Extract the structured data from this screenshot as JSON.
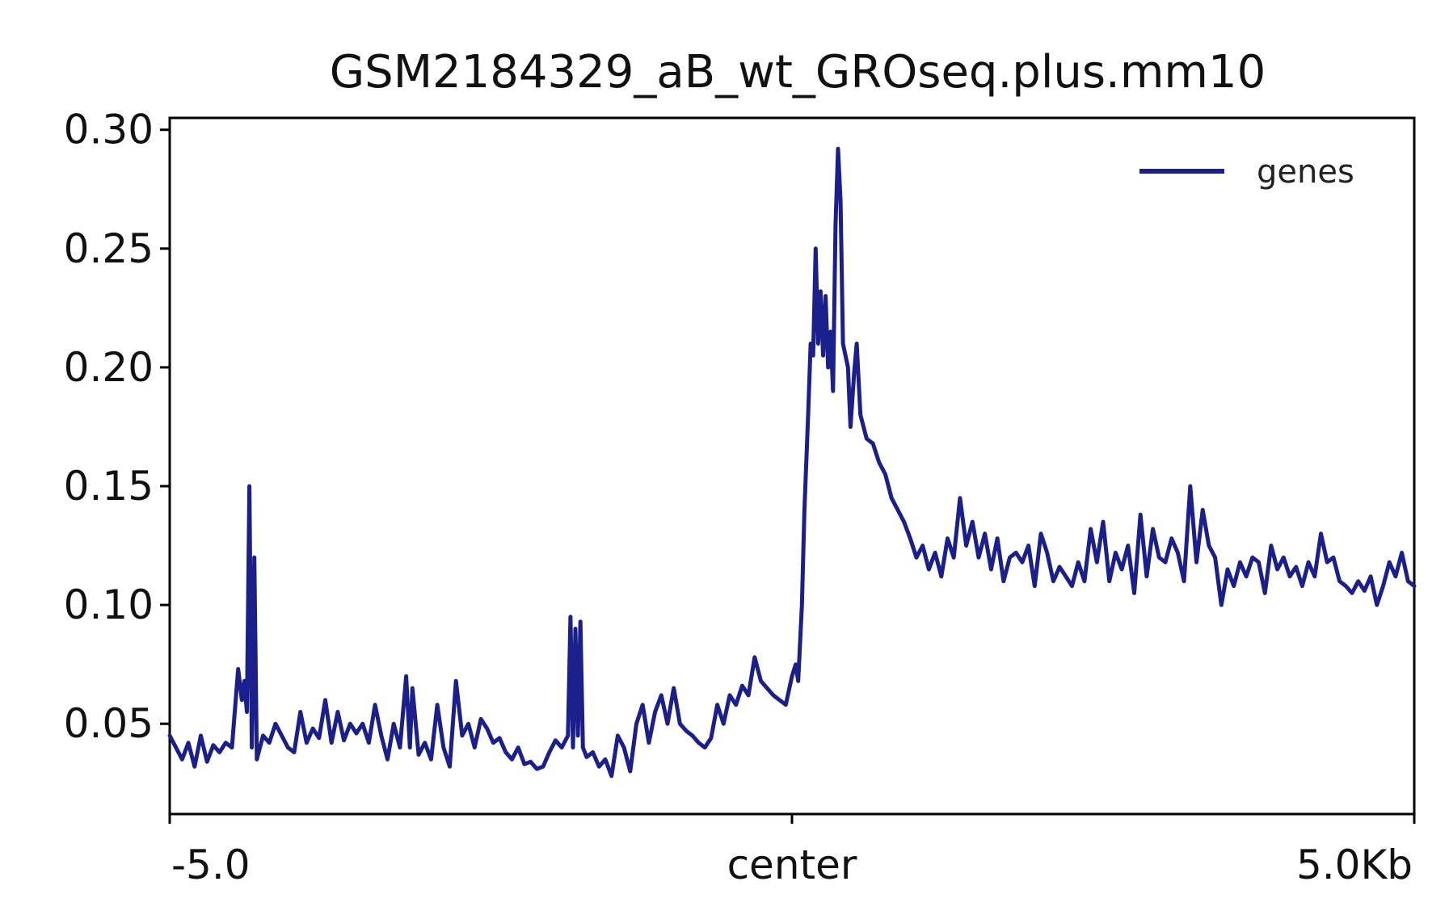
{
  "chart_data": {
    "type": "line",
    "title": "GSM2184329_aB_wt_GROseq.plus.mm10",
    "xlabel": "",
    "ylabel": "",
    "x_range": [
      -5.0,
      5.0
    ],
    "xlim": [
      -5.0,
      5.0
    ],
    "ylim": [
      0.012,
      0.305
    ],
    "grid": false,
    "legend_position": "top-right",
    "x_ticks": [
      {
        "value": -5.0,
        "label": "-5.0"
      },
      {
        "value": 0.0,
        "label": "center"
      },
      {
        "value": 5.0,
        "label": "5.0Kb"
      }
    ],
    "y_ticks": [
      {
        "value": 0.05,
        "label": "0.05"
      },
      {
        "value": 0.1,
        "label": "0.10"
      },
      {
        "value": 0.15,
        "label": "0.15"
      },
      {
        "value": 0.2,
        "label": "0.20"
      },
      {
        "value": 0.25,
        "label": "0.25"
      },
      {
        "value": 0.3,
        "label": "0.30"
      }
    ],
    "series": [
      {
        "name": "genes",
        "color": "#1a1f8c",
        "points": [
          [
            -5.0,
            0.045
          ],
          [
            -4.9,
            0.035
          ],
          [
            -4.85,
            0.042
          ],
          [
            -4.8,
            0.032
          ],
          [
            -4.75,
            0.045
          ],
          [
            -4.7,
            0.034
          ],
          [
            -4.65,
            0.041
          ],
          [
            -4.6,
            0.038
          ],
          [
            -4.55,
            0.042
          ],
          [
            -4.5,
            0.04
          ],
          [
            -4.45,
            0.073
          ],
          [
            -4.42,
            0.06
          ],
          [
            -4.4,
            0.068
          ],
          [
            -4.38,
            0.055
          ],
          [
            -4.36,
            0.15
          ],
          [
            -4.34,
            0.04
          ],
          [
            -4.32,
            0.12
          ],
          [
            -4.3,
            0.035
          ],
          [
            -4.25,
            0.045
          ],
          [
            -4.2,
            0.042
          ],
          [
            -4.15,
            0.05
          ],
          [
            -4.1,
            0.045
          ],
          [
            -4.05,
            0.04
          ],
          [
            -4.0,
            0.038
          ],
          [
            -3.95,
            0.055
          ],
          [
            -3.9,
            0.042
          ],
          [
            -3.85,
            0.048
          ],
          [
            -3.8,
            0.044
          ],
          [
            -3.75,
            0.06
          ],
          [
            -3.7,
            0.042
          ],
          [
            -3.65,
            0.055
          ],
          [
            -3.6,
            0.043
          ],
          [
            -3.55,
            0.05
          ],
          [
            -3.5,
            0.046
          ],
          [
            -3.45,
            0.05
          ],
          [
            -3.4,
            0.042
          ],
          [
            -3.35,
            0.058
          ],
          [
            -3.3,
            0.045
          ],
          [
            -3.25,
            0.035
          ],
          [
            -3.2,
            0.05
          ],
          [
            -3.15,
            0.04
          ],
          [
            -3.1,
            0.07
          ],
          [
            -3.07,
            0.04
          ],
          [
            -3.05,
            0.065
          ],
          [
            -3.0,
            0.037
          ],
          [
            -2.95,
            0.042
          ],
          [
            -2.9,
            0.035
          ],
          [
            -2.85,
            0.058
          ],
          [
            -2.8,
            0.04
          ],
          [
            -2.75,
            0.032
          ],
          [
            -2.7,
            0.068
          ],
          [
            -2.65,
            0.045
          ],
          [
            -2.6,
            0.05
          ],
          [
            -2.55,
            0.04
          ],
          [
            -2.5,
            0.052
          ],
          [
            -2.45,
            0.048
          ],
          [
            -2.4,
            0.042
          ],
          [
            -2.35,
            0.044
          ],
          [
            -2.3,
            0.038
          ],
          [
            -2.25,
            0.035
          ],
          [
            -2.2,
            0.04
          ],
          [
            -2.15,
            0.033
          ],
          [
            -2.1,
            0.034
          ],
          [
            -2.05,
            0.031
          ],
          [
            -2.0,
            0.032
          ],
          [
            -1.95,
            0.038
          ],
          [
            -1.9,
            0.043
          ],
          [
            -1.85,
            0.04
          ],
          [
            -1.8,
            0.045
          ],
          [
            -1.78,
            0.095
          ],
          [
            -1.76,
            0.04
          ],
          [
            -1.74,
            0.09
          ],
          [
            -1.72,
            0.045
          ],
          [
            -1.7,
            0.093
          ],
          [
            -1.68,
            0.04
          ],
          [
            -1.65,
            0.036
          ],
          [
            -1.6,
            0.038
          ],
          [
            -1.55,
            0.032
          ],
          [
            -1.5,
            0.035
          ],
          [
            -1.45,
            0.028
          ],
          [
            -1.4,
            0.045
          ],
          [
            -1.35,
            0.04
          ],
          [
            -1.3,
            0.03
          ],
          [
            -1.25,
            0.05
          ],
          [
            -1.2,
            0.058
          ],
          [
            -1.15,
            0.042
          ],
          [
            -1.1,
            0.055
          ],
          [
            -1.05,
            0.062
          ],
          [
            -1.0,
            0.05
          ],
          [
            -0.95,
            0.065
          ],
          [
            -0.9,
            0.05
          ],
          [
            -0.85,
            0.047
          ],
          [
            -0.8,
            0.045
          ],
          [
            -0.75,
            0.042
          ],
          [
            -0.7,
            0.04
          ],
          [
            -0.65,
            0.044
          ],
          [
            -0.6,
            0.058
          ],
          [
            -0.55,
            0.05
          ],
          [
            -0.5,
            0.062
          ],
          [
            -0.45,
            0.058
          ],
          [
            -0.4,
            0.066
          ],
          [
            -0.35,
            0.062
          ],
          [
            -0.3,
            0.078
          ],
          [
            -0.25,
            0.068
          ],
          [
            -0.2,
            0.065
          ],
          [
            -0.15,
            0.062
          ],
          [
            -0.1,
            0.06
          ],
          [
            -0.05,
            0.058
          ],
          [
            0.0,
            0.07
          ],
          [
            0.03,
            0.075
          ],
          [
            0.05,
            0.068
          ],
          [
            0.08,
            0.1
          ],
          [
            0.1,
            0.14
          ],
          [
            0.13,
            0.18
          ],
          [
            0.15,
            0.21
          ],
          [
            0.17,
            0.205
          ],
          [
            0.19,
            0.25
          ],
          [
            0.21,
            0.21
          ],
          [
            0.23,
            0.232
          ],
          [
            0.25,
            0.205
          ],
          [
            0.27,
            0.23
          ],
          [
            0.29,
            0.2
          ],
          [
            0.31,
            0.215
          ],
          [
            0.33,
            0.19
          ],
          [
            0.35,
            0.26
          ],
          [
            0.37,
            0.292
          ],
          [
            0.39,
            0.27
          ],
          [
            0.41,
            0.21
          ],
          [
            0.43,
            0.205
          ],
          [
            0.45,
            0.2
          ],
          [
            0.47,
            0.175
          ],
          [
            0.5,
            0.198
          ],
          [
            0.52,
            0.21
          ],
          [
            0.55,
            0.18
          ],
          [
            0.6,
            0.17
          ],
          [
            0.65,
            0.168
          ],
          [
            0.7,
            0.16
          ],
          [
            0.75,
            0.155
          ],
          [
            0.8,
            0.145
          ],
          [
            0.85,
            0.14
          ],
          [
            0.9,
            0.135
          ],
          [
            0.95,
            0.128
          ],
          [
            1.0,
            0.12
          ],
          [
            1.05,
            0.125
          ],
          [
            1.1,
            0.115
          ],
          [
            1.15,
            0.122
          ],
          [
            1.2,
            0.112
          ],
          [
            1.25,
            0.128
          ],
          [
            1.3,
            0.12
          ],
          [
            1.35,
            0.145
          ],
          [
            1.4,
            0.125
          ],
          [
            1.45,
            0.135
          ],
          [
            1.5,
            0.12
          ],
          [
            1.55,
            0.13
          ],
          [
            1.6,
            0.115
          ],
          [
            1.65,
            0.128
          ],
          [
            1.7,
            0.11
          ],
          [
            1.75,
            0.12
          ],
          [
            1.8,
            0.122
          ],
          [
            1.85,
            0.118
          ],
          [
            1.9,
            0.125
          ],
          [
            1.95,
            0.108
          ],
          [
            2.0,
            0.13
          ],
          [
            2.05,
            0.122
          ],
          [
            2.1,
            0.11
          ],
          [
            2.15,
            0.116
          ],
          [
            2.2,
            0.112
          ],
          [
            2.25,
            0.108
          ],
          [
            2.3,
            0.118
          ],
          [
            2.35,
            0.11
          ],
          [
            2.4,
            0.132
          ],
          [
            2.45,
            0.118
          ],
          [
            2.5,
            0.135
          ],
          [
            2.55,
            0.11
          ],
          [
            2.6,
            0.122
          ],
          [
            2.65,
            0.115
          ],
          [
            2.7,
            0.125
          ],
          [
            2.75,
            0.105
          ],
          [
            2.8,
            0.138
          ],
          [
            2.85,
            0.112
          ],
          [
            2.9,
            0.132
          ],
          [
            2.95,
            0.12
          ],
          [
            3.0,
            0.118
          ],
          [
            3.05,
            0.128
          ],
          [
            3.1,
            0.122
          ],
          [
            3.15,
            0.11
          ],
          [
            3.2,
            0.15
          ],
          [
            3.25,
            0.118
          ],
          [
            3.3,
            0.14
          ],
          [
            3.35,
            0.125
          ],
          [
            3.4,
            0.12
          ],
          [
            3.45,
            0.1
          ],
          [
            3.5,
            0.115
          ],
          [
            3.55,
            0.108
          ],
          [
            3.6,
            0.118
          ],
          [
            3.65,
            0.112
          ],
          [
            3.7,
            0.12
          ],
          [
            3.75,
            0.118
          ],
          [
            3.8,
            0.105
          ],
          [
            3.85,
            0.125
          ],
          [
            3.9,
            0.115
          ],
          [
            3.95,
            0.12
          ],
          [
            4.0,
            0.112
          ],
          [
            4.05,
            0.116
          ],
          [
            4.1,
            0.108
          ],
          [
            4.15,
            0.118
          ],
          [
            4.2,
            0.112
          ],
          [
            4.25,
            0.13
          ],
          [
            4.3,
            0.118
          ],
          [
            4.35,
            0.12
          ],
          [
            4.4,
            0.11
          ],
          [
            4.45,
            0.108
          ],
          [
            4.5,
            0.105
          ],
          [
            4.55,
            0.11
          ],
          [
            4.6,
            0.106
          ],
          [
            4.65,
            0.112
          ],
          [
            4.7,
            0.1
          ],
          [
            4.75,
            0.108
          ],
          [
            4.8,
            0.118
          ],
          [
            4.85,
            0.112
          ],
          [
            4.9,
            0.122
          ],
          [
            4.95,
            0.11
          ],
          [
            5.0,
            0.108
          ]
        ]
      }
    ]
  }
}
